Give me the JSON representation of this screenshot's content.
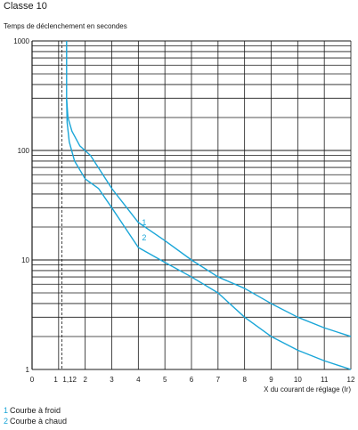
{
  "page_title": "Classe 10",
  "chart_data": {
    "type": "line",
    "title": "",
    "ylabel": "Temps de déclenchement en secondes",
    "xlabel": "X du courant de réglage (Ir)",
    "xlim": [
      0,
      12
    ],
    "ylim": [
      1,
      1000
    ],
    "yscale": "log",
    "grid": true,
    "x_ticks": [
      {
        "value": 0,
        "label": "0"
      },
      {
        "value": 1,
        "label": "1"
      },
      {
        "value": 1.12,
        "label": "1,12"
      },
      {
        "value": 2,
        "label": "2"
      },
      {
        "value": 3,
        "label": "3"
      },
      {
        "value": 4,
        "label": "4"
      },
      {
        "value": 5,
        "label": "5"
      },
      {
        "value": 6,
        "label": "6"
      },
      {
        "value": 7,
        "label": "7"
      },
      {
        "value": 8,
        "label": "8"
      },
      {
        "value": 9,
        "label": "9"
      },
      {
        "value": 10,
        "label": "10"
      },
      {
        "value": 11,
        "label": "11"
      },
      {
        "value": 12,
        "label": "12"
      }
    ],
    "y_ticks": [
      {
        "value": 1,
        "label": "1"
      },
      {
        "value": 10,
        "label": "10"
      },
      {
        "value": 100,
        "label": "100"
      },
      {
        "value": 1000,
        "label": "1000"
      }
    ],
    "reference_line_x": 1.12,
    "curve_color": "#1aa6d8",
    "series": [
      {
        "name": "1",
        "x": [
          1.3,
          1.3,
          1.35,
          1.5,
          1.8,
          2.2,
          3.0,
          4.0,
          5.0,
          6.0,
          7.0,
          8.0,
          9.0,
          10.0,
          11.0,
          12.0
        ],
        "y": [
          1000,
          300,
          200,
          150,
          110,
          90,
          45,
          22,
          15,
          10,
          7,
          5.5,
          4,
          3,
          2.4,
          2
        ]
      },
      {
        "name": "2",
        "x": [
          1.3,
          1.32,
          1.4,
          1.6,
          2.0,
          2.5,
          3.0,
          4.0,
          5.0,
          6.0,
          7.0,
          8.0,
          9.0,
          10.0,
          11.0,
          12.0
        ],
        "y": [
          300,
          180,
          120,
          80,
          55,
          45,
          30,
          13,
          9.5,
          7,
          5,
          3,
          2,
          1.5,
          1.2,
          1
        ]
      }
    ]
  },
  "legend": [
    {
      "number": "1",
      "text": "Courbe à froid"
    },
    {
      "number": "2",
      "text": "Courbe à chaud"
    }
  ]
}
